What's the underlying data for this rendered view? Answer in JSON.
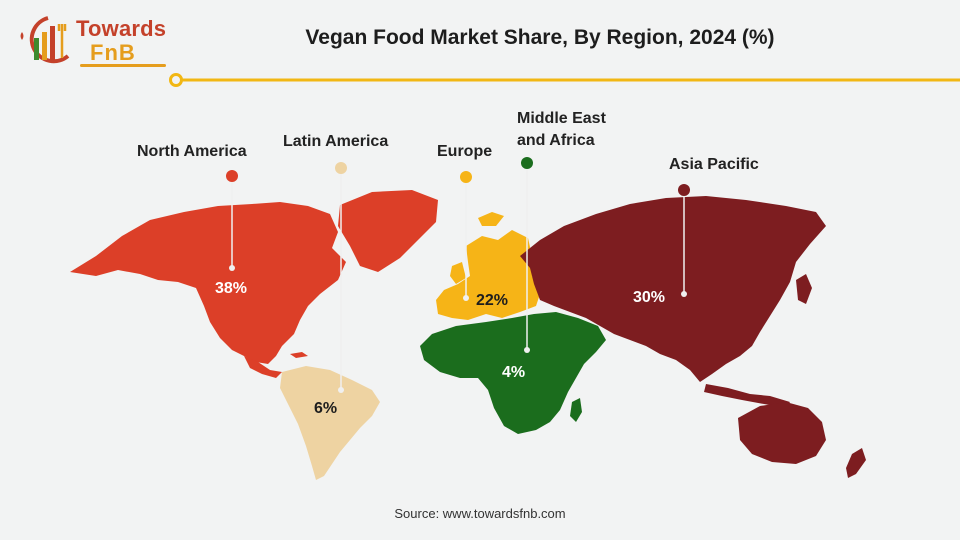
{
  "brand": {
    "line1": "Towards",
    "line2": "FnB"
  },
  "title": "Vegan Food Market Share, By Region, 2024 (%)",
  "chart_data": {
    "type": "choropleth-map",
    "title": "Vegan Food Market Share, By Region, 2024 (%)",
    "unit": "%",
    "regions": [
      {
        "key": "north_america",
        "name": "North America",
        "share": 38,
        "label": "38%",
        "color": "#dc3f28"
      },
      {
        "key": "latin_america",
        "name": "Latin America",
        "share": 6,
        "label": "6%",
        "color": "#eed3a2"
      },
      {
        "key": "europe",
        "name": "Europe",
        "share": 22,
        "label": "22%",
        "color": "#f6b417"
      },
      {
        "key": "mea",
        "name": "Middle East\nand Africa",
        "share": 4,
        "label": "4%",
        "color": "#1b6d1d"
      },
      {
        "key": "asia_pacific",
        "name": "Asia Pacific",
        "share": 30,
        "label": "30%",
        "color": "#7d1d20"
      }
    ]
  },
  "colors": {
    "accent": "#f2b713",
    "title": "#1d1d1d",
    "background": "#f2f3f3"
  },
  "source": "Source: www.towardsfnb.com"
}
